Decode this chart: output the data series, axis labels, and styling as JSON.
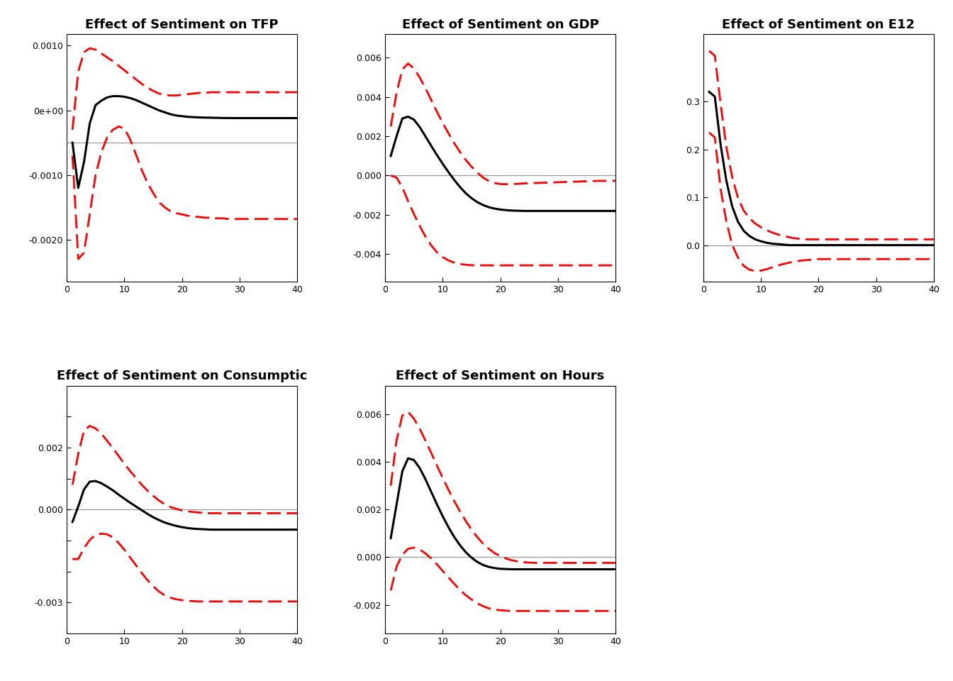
{
  "panels": [
    {
      "title": "Effect of Sentiment on TFP",
      "ylim": [
        -0.00265,
        0.00118
      ],
      "yticks": [
        -0.002,
        -0.001,
        0.0,
        0.001
      ],
      "yticklabels": [
        "-0.0020",
        "-0.0010",
        "0e+00",
        "0.0010"
      ],
      "median": [
        -0.0005,
        -0.0012,
        -0.0008,
        -0.0002,
        8e-05,
        0.00015,
        0.0002,
        0.00022,
        0.00022,
        0.00021,
        0.00019,
        0.00016,
        0.00012,
        8e-05,
        4e-05,
        0.0,
        -3e-05,
        -6e-05,
        -8e-05,
        -9e-05,
        -0.0001,
        -0.000105,
        -0.00011,
        -0.000112,
        -0.000114,
        -0.000116,
        -0.000118,
        -0.000119,
        -0.00012,
        -0.00012,
        -0.00012,
        -0.00012,
        -0.00012,
        -0.00012,
        -0.00012,
        -0.00012,
        -0.00012,
        -0.00012,
        -0.00012,
        -0.00012
      ],
      "upper": [
        -0.0003,
        0.0006,
        0.0009,
        0.00096,
        0.00094,
        0.00088,
        0.00082,
        0.00076,
        0.00069,
        0.00062,
        0.00055,
        0.00048,
        0.00041,
        0.00035,
        0.0003,
        0.00026,
        0.00024,
        0.00023,
        0.00023,
        0.00024,
        0.00025,
        0.00026,
        0.00027,
        0.00027,
        0.00028,
        0.00028,
        0.00028,
        0.00028,
        0.00028,
        0.00028,
        0.00028,
        0.00028,
        0.00028,
        0.00028,
        0.00028,
        0.00028,
        0.00028,
        0.00028,
        0.00028,
        0.00028
      ],
      "lower": [
        -0.0007,
        -0.0023,
        -0.0022,
        -0.0016,
        -0.001,
        -0.00065,
        -0.00042,
        -0.0003,
        -0.00025,
        -0.00028,
        -0.00045,
        -0.00068,
        -0.00092,
        -0.00112,
        -0.00128,
        -0.00142,
        -0.0015,
        -0.00156,
        -0.00159,
        -0.00161,
        -0.00163,
        -0.00164,
        -0.00165,
        -0.00166,
        -0.00166,
        -0.00167,
        -0.00167,
        -0.00168,
        -0.00168,
        -0.00168,
        -0.00168,
        -0.00168,
        -0.00168,
        -0.00168,
        -0.00168,
        -0.00168,
        -0.00168,
        -0.00168,
        -0.00168,
        -0.00168
      ],
      "zero_line": -0.0005,
      "row": 0,
      "col": 0
    },
    {
      "title": "Effect of Sentiment on GDP",
      "ylim": [
        -0.0054,
        0.0072
      ],
      "yticks": [
        -0.004,
        -0.002,
        0.0,
        0.002,
        0.004,
        0.006
      ],
      "yticklabels": [
        "-0.004",
        "-0.002",
        "0.000",
        "0.002",
        "0.004",
        "0.006"
      ],
      "median": [
        0.001,
        0.002,
        0.0029,
        0.003,
        0.00285,
        0.00248,
        0.002,
        0.00152,
        0.00105,
        0.0006,
        0.00018,
        -0.00022,
        -0.00058,
        -0.0009,
        -0.00115,
        -0.00135,
        -0.0015,
        -0.00161,
        -0.00168,
        -0.00173,
        -0.00176,
        -0.00178,
        -0.00179,
        -0.0018,
        -0.0018,
        -0.0018,
        -0.0018,
        -0.0018,
        -0.0018,
        -0.0018,
        -0.0018,
        -0.0018,
        -0.0018,
        -0.0018,
        -0.0018,
        -0.0018,
        -0.0018,
        -0.0018,
        -0.0018,
        -0.0018
      ],
      "upper": [
        0.0025,
        0.0042,
        0.0054,
        0.0057,
        0.00545,
        0.005,
        0.00445,
        0.00385,
        0.00325,
        0.00268,
        0.00215,
        0.00165,
        0.0012,
        0.0008,
        0.00045,
        0.00015,
        -0.0001,
        -0.00028,
        -0.00038,
        -0.00043,
        -0.00044,
        -0.00043,
        -0.00042,
        -0.0004,
        -0.00039,
        -0.00038,
        -0.00037,
        -0.00036,
        -0.00035,
        -0.00034,
        -0.00033,
        -0.00032,
        -0.00031,
        -0.0003,
        -0.00029,
        -0.00028,
        -0.00027,
        -0.00027,
        -0.00027,
        -0.00027
      ],
      "lower": [
        0.0,
        -0.0001,
        -0.0006,
        -0.0013,
        -0.00195,
        -0.00255,
        -0.0031,
        -0.00355,
        -0.0039,
        -0.00415,
        -0.00432,
        -0.00443,
        -0.0045,
        -0.00454,
        -0.00456,
        -0.00457,
        -0.00457,
        -0.00457,
        -0.00457,
        -0.00457,
        -0.00457,
        -0.00457,
        -0.00457,
        -0.00457,
        -0.00457,
        -0.00457,
        -0.00457,
        -0.00457,
        -0.00457,
        -0.00457,
        -0.00457,
        -0.00457,
        -0.00457,
        -0.00457,
        -0.00457,
        -0.00457,
        -0.00457,
        -0.00457,
        -0.00457,
        -0.00457
      ],
      "zero_line": 0.0,
      "row": 0,
      "col": 1
    },
    {
      "title": "Effect of Sentiment on E12",
      "ylim": [
        -0.075,
        0.44
      ],
      "yticks": [
        0.0,
        0.1,
        0.2,
        0.3
      ],
      "yticklabels": [
        "0.0",
        "0.1",
        "0.2",
        "0.3"
      ],
      "median": [
        0.32,
        0.31,
        0.21,
        0.135,
        0.082,
        0.05,
        0.031,
        0.02,
        0.013,
        0.009,
        0.006,
        0.004,
        0.003,
        0.002,
        0.001,
        0.001,
        0.001,
        0.001,
        0.001,
        0.001,
        0.001,
        0.001,
        0.001,
        0.001,
        0.001,
        0.001,
        0.001,
        0.001,
        0.001,
        0.001,
        0.001,
        0.001,
        0.001,
        0.001,
        0.001,
        0.001,
        0.001,
        0.001,
        0.001,
        0.001
      ],
      "upper": [
        0.405,
        0.395,
        0.295,
        0.205,
        0.143,
        0.1,
        0.073,
        0.057,
        0.046,
        0.038,
        0.032,
        0.027,
        0.023,
        0.02,
        0.017,
        0.015,
        0.014,
        0.013,
        0.013,
        0.013,
        0.013,
        0.013,
        0.013,
        0.013,
        0.013,
        0.013,
        0.013,
        0.013,
        0.013,
        0.013,
        0.013,
        0.013,
        0.013,
        0.013,
        0.013,
        0.013,
        0.013,
        0.013,
        0.013,
        0.013
      ],
      "lower": [
        0.235,
        0.225,
        0.118,
        0.05,
        0.002,
        -0.025,
        -0.042,
        -0.05,
        -0.053,
        -0.052,
        -0.049,
        -0.045,
        -0.041,
        -0.038,
        -0.035,
        -0.033,
        -0.031,
        -0.03,
        -0.029,
        -0.028,
        -0.028,
        -0.028,
        -0.028,
        -0.028,
        -0.028,
        -0.028,
        -0.028,
        -0.028,
        -0.028,
        -0.028,
        -0.028,
        -0.028,
        -0.028,
        -0.028,
        -0.028,
        -0.028,
        -0.028,
        -0.028,
        -0.028,
        -0.028
      ],
      "zero_line": 0.0,
      "row": 0,
      "col": 2
    },
    {
      "title": "Effect of Sentiment on Consumptic",
      "ylim": [
        -0.004,
        0.004
      ],
      "yticks": [
        -0.003,
        -0.002,
        -0.001,
        0.0,
        0.001,
        0.002,
        0.003
      ],
      "yticklabels": [
        "-0.003",
        "",
        "",
        "0.000",
        "",
        "0.002",
        ""
      ],
      "median": [
        -0.0004,
        0.0001,
        0.00065,
        0.0009,
        0.00092,
        0.00085,
        0.00074,
        0.00062,
        0.00048,
        0.00035,
        0.00022,
        0.0001,
        -2e-05,
        -0.00014,
        -0.00025,
        -0.00034,
        -0.00042,
        -0.00048,
        -0.00053,
        -0.00057,
        -0.0006,
        -0.00062,
        -0.00063,
        -0.00064,
        -0.00065,
        -0.00065,
        -0.00065,
        -0.00065,
        -0.00065,
        -0.00065,
        -0.00065,
        -0.00065,
        -0.00065,
        -0.00065,
        -0.00065,
        -0.00065,
        -0.00065,
        -0.00065,
        -0.00065,
        -0.00065
      ],
      "upper": [
        0.0008,
        0.0018,
        0.00255,
        0.0027,
        0.00262,
        0.00245,
        0.00222,
        0.00198,
        0.00173,
        0.00148,
        0.00124,
        0.00102,
        0.0008,
        0.00061,
        0.00044,
        0.00029,
        0.00017,
        8e-05,
        2e-05,
        -3e-05,
        -6e-05,
        -8e-05,
        -0.0001,
        -0.00011,
        -0.00012,
        -0.00012,
        -0.00012,
        -0.00012,
        -0.00012,
        -0.00012,
        -0.00012,
        -0.00012,
        -0.00012,
        -0.00012,
        -0.00012,
        -0.00012,
        -0.00012,
        -0.00012,
        -0.00012,
        -0.00012
      ],
      "lower": [
        -0.0016,
        -0.0016,
        -0.00125,
        -0.00098,
        -0.00082,
        -0.00078,
        -0.0008,
        -0.0009,
        -0.00108,
        -0.0013,
        -0.00155,
        -0.0018,
        -0.00205,
        -0.00228,
        -0.00248,
        -0.00265,
        -0.00277,
        -0.00285,
        -0.0029,
        -0.00293,
        -0.00295,
        -0.00296,
        -0.00297,
        -0.00297,
        -0.00297,
        -0.00297,
        -0.00297,
        -0.00297,
        -0.00297,
        -0.00297,
        -0.00297,
        -0.00297,
        -0.00297,
        -0.00297,
        -0.00297,
        -0.00297,
        -0.00297,
        -0.00297,
        -0.00297,
        -0.00297
      ],
      "zero_line": 0.0,
      "row": 1,
      "col": 0
    },
    {
      "title": "Effect of Sentiment on Hours",
      "ylim": [
        -0.0032,
        0.0072
      ],
      "yticks": [
        -0.002,
        0.0,
        0.002,
        0.004,
        0.006
      ],
      "yticklabels": [
        "-0.002",
        "0.000",
        "0.002",
        "0.004",
        "0.006"
      ],
      "median": [
        0.0008,
        0.0022,
        0.0036,
        0.00415,
        0.00408,
        0.00375,
        0.00328,
        0.00275,
        0.00222,
        0.00172,
        0.00126,
        0.00085,
        0.0005,
        0.00021,
        -2e-05,
        -0.0002,
        -0.00033,
        -0.00041,
        -0.00046,
        -0.00049,
        -0.0005,
        -0.00051,
        -0.00051,
        -0.00051,
        -0.00051,
        -0.00051,
        -0.00051,
        -0.00051,
        -0.00051,
        -0.00051,
        -0.00051,
        -0.00051,
        -0.00051,
        -0.00051,
        -0.00051,
        -0.00051,
        -0.00051,
        -0.00051,
        -0.00051,
        -0.00051
      ],
      "upper": [
        0.003,
        0.0049,
        0.00595,
        0.0061,
        0.00582,
        0.0054,
        0.0049,
        0.00438,
        0.00385,
        0.00333,
        0.00283,
        0.00236,
        0.00192,
        0.00152,
        0.00116,
        0.00084,
        0.00057,
        0.00035,
        0.00017,
        4e-05,
        -6e-05,
        -0.00013,
        -0.00018,
        -0.00021,
        -0.00023,
        -0.00024,
        -0.00024,
        -0.00024,
        -0.00024,
        -0.00024,
        -0.00024,
        -0.00024,
        -0.00024,
        -0.00024,
        -0.00024,
        -0.00024,
        -0.00024,
        -0.00024,
        -0.00024,
        -0.00024
      ],
      "lower": [
        -0.0014,
        -0.0004,
        0.0001,
        0.00035,
        0.0004,
        0.00032,
        0.00016,
        -5e-05,
        -0.0003,
        -0.00058,
        -0.00085,
        -0.00112,
        -0.00138,
        -0.0016,
        -0.00178,
        -0.00194,
        -0.00206,
        -0.00215,
        -0.0022,
        -0.00223,
        -0.00225,
        -0.00226,
        -0.00226,
        -0.00226,
        -0.00226,
        -0.00226,
        -0.00226,
        -0.00226,
        -0.00226,
        -0.00226,
        -0.00226,
        -0.00226,
        -0.00226,
        -0.00226,
        -0.00226,
        -0.00226,
        -0.00226,
        -0.00226,
        -0.00226,
        -0.00226
      ],
      "zero_line": 0.0,
      "row": 1,
      "col": 1
    }
  ],
  "x": [
    1,
    2,
    3,
    4,
    5,
    6,
    7,
    8,
    9,
    10,
    11,
    12,
    13,
    14,
    15,
    16,
    17,
    18,
    19,
    20,
    21,
    22,
    23,
    24,
    25,
    26,
    27,
    28,
    29,
    30,
    31,
    32,
    33,
    34,
    35,
    36,
    37,
    38,
    39,
    40
  ],
  "line_color": "#000000",
  "band_color": "#FF0000",
  "zero_line_color": "#999999",
  "line_width": 2.2,
  "band_lw": 2.0,
  "title_fontsize": 13,
  "tick_fontsize": 9,
  "bg_color": "#FFFFFF",
  "fig_bg_color": "#FFFFFF"
}
